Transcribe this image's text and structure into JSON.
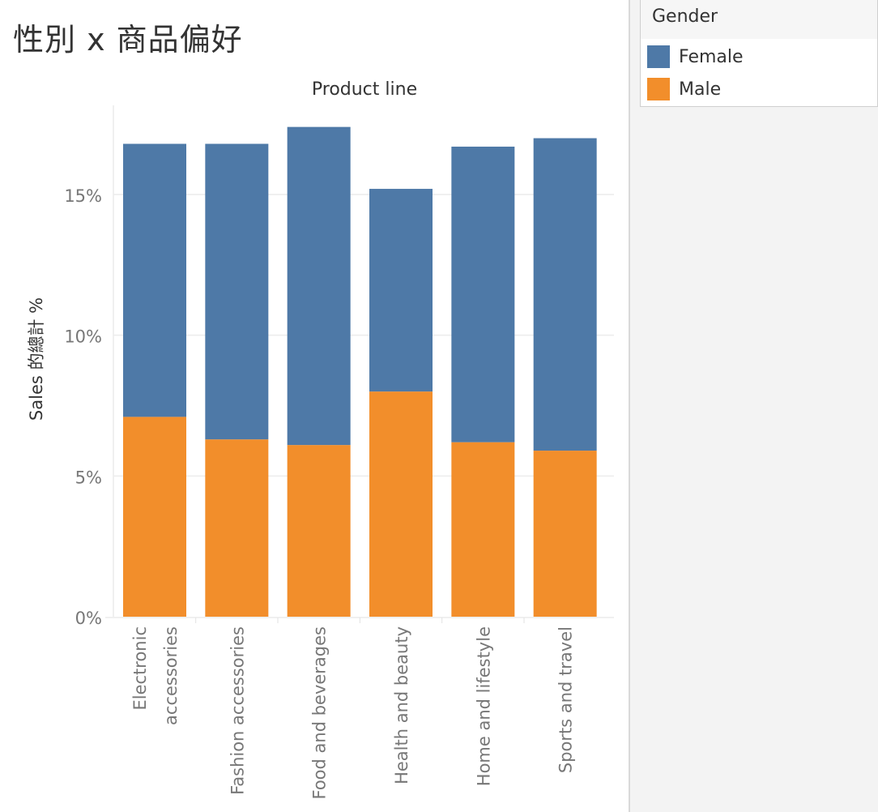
{
  "sheet": {
    "title": "性別 x 商品偏好"
  },
  "legend": {
    "title": "Gender",
    "items": [
      {
        "label": "Female",
        "color": "#4e79a7"
      },
      {
        "label": "Male",
        "color": "#f28e2b"
      }
    ]
  },
  "chart_data": {
    "type": "bar",
    "stacked": true,
    "title": "Product line",
    "xlabel": "",
    "ylabel": "Sales 的總計 %",
    "categories": [
      "Electronic accessories",
      "Fashion accessories",
      "Food and beverages",
      "Health and beauty",
      "Home and lifestyle",
      "Sports and travel"
    ],
    "category_lines": [
      [
        "Electronic",
        "accessories"
      ],
      [
        "Fashion accessories"
      ],
      [
        "Food and beverages"
      ],
      [
        "Health and beauty"
      ],
      [
        "Home and lifestyle"
      ],
      [
        "Sports and travel"
      ]
    ],
    "series": [
      {
        "name": "Male",
        "color": "#f28e2b",
        "values": [
          7.1,
          6.3,
          6.1,
          8.0,
          6.2,
          5.9
        ]
      },
      {
        "name": "Female",
        "color": "#4e79a7",
        "values": [
          9.7,
          10.5,
          11.3,
          7.2,
          10.5,
          11.1
        ]
      }
    ],
    "yticks": [
      0,
      5,
      10,
      15
    ],
    "ytick_labels": [
      "0%",
      "5%",
      "10%",
      "15%"
    ],
    "ylim": [
      0,
      18
    ],
    "grid": true,
    "legend_position": "right"
  }
}
